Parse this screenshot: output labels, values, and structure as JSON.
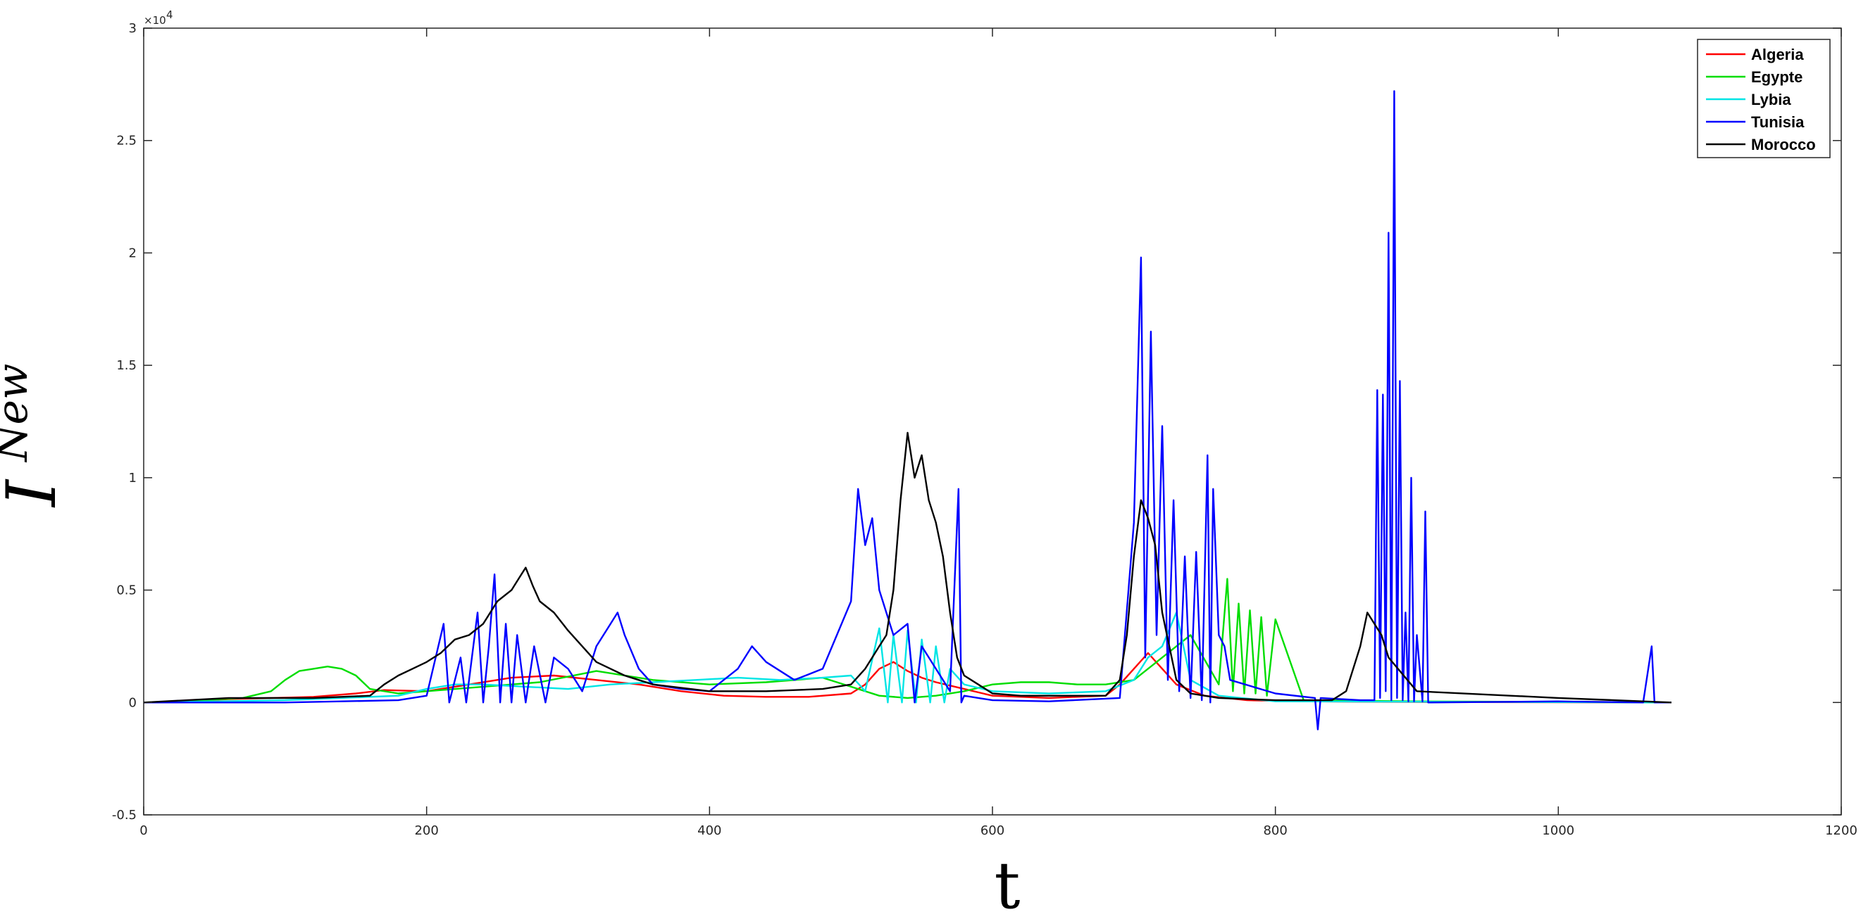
{
  "chart_data": {
    "type": "line",
    "xlabel": "t",
    "ylabel": "I",
    "ylabel_superscript": "New",
    "y_exponent_label": "×10",
    "y_exponent_power": "4",
    "xlim": [
      0,
      1200
    ],
    "ylim": [
      -5000,
      30000
    ],
    "xticks": [
      0,
      200,
      400,
      600,
      800,
      1000,
      1200
    ],
    "xtick_labels": [
      "0",
      "200",
      "400",
      "600",
      "800",
      "1000",
      "1200"
    ],
    "yticks": [
      -5000,
      0,
      5000,
      10000,
      15000,
      20000,
      25000,
      30000
    ],
    "ytick_labels": [
      "-0.5",
      "0",
      "0.5",
      "1",
      "1.5",
      "2",
      "2.5",
      "3"
    ],
    "grid": false,
    "legend_position": "top-right",
    "series": [
      {
        "name": "Algeria",
        "color": "#ff0000",
        "x": [
          0,
          30,
          60,
          90,
          120,
          150,
          170,
          200,
          230,
          260,
          290,
          320,
          350,
          380,
          410,
          440,
          470,
          500,
          510,
          520,
          530,
          540,
          550,
          560,
          580,
          600,
          640,
          680,
          690,
          700,
          710,
          720,
          730,
          750,
          780,
          820,
          900,
          1000,
          1080
        ],
        "values": [
          0,
          50,
          150,
          200,
          250,
          400,
          550,
          500,
          800,
          1100,
          1200,
          1000,
          800,
          500,
          300,
          250,
          250,
          400,
          800,
          1500,
          1800,
          1400,
          1100,
          900,
          600,
          300,
          200,
          300,
          800,
          1500,
          2200,
          1500,
          800,
          300,
          100,
          50,
          20,
          10,
          0
        ]
      },
      {
        "name": "Egypte",
        "color": "#00dd00",
        "x": [
          0,
          40,
          70,
          90,
          100,
          110,
          120,
          130,
          140,
          150,
          160,
          180,
          200,
          240,
          280,
          320,
          360,
          400,
          440,
          480,
          500,
          520,
          540,
          560,
          580,
          600,
          620,
          640,
          660,
          680,
          700,
          720,
          740,
          760,
          766,
          770,
          774,
          778,
          782,
          786,
          790,
          794,
          800,
          820,
          900,
          1080
        ],
        "values": [
          0,
          100,
          200,
          500,
          1000,
          1400,
          1500,
          1600,
          1500,
          1200,
          600,
          400,
          500,
          700,
          900,
          1400,
          1000,
          800,
          900,
          1100,
          700,
          300,
          200,
          300,
          500,
          800,
          900,
          900,
          800,
          800,
          1000,
          2000,
          3000,
          800,
          5500,
          500,
          4400,
          400,
          4100,
          400,
          3800,
          300,
          3700,
          100,
          50,
          0
        ]
      },
      {
        "name": "Lybia",
        "color": "#00e5e5",
        "x": [
          0,
          100,
          180,
          200,
          220,
          240,
          270,
          300,
          330,
          360,
          390,
          420,
          450,
          480,
          500,
          510,
          520,
          526,
          530,
          536,
          540,
          546,
          550,
          556,
          560,
          566,
          570,
          580,
          600,
          640,
          680,
          700,
          710,
          720,
          730,
          740,
          760,
          800,
          1080
        ],
        "values": [
          0,
          100,
          300,
          600,
          800,
          800,
          700,
          600,
          800,
          900,
          1000,
          1100,
          1000,
          1100,
          1200,
          500,
          3300,
          0,
          3000,
          0,
          3200,
          0,
          2800,
          0,
          2500,
          0,
          1500,
          800,
          500,
          400,
          500,
          1000,
          2000,
          2500,
          4000,
          1000,
          300,
          50,
          0
        ]
      },
      {
        "name": "Tunisia",
        "color": "#0000ff",
        "x": [
          0,
          100,
          180,
          200,
          212,
          216,
          224,
          228,
          236,
          240,
          244,
          248,
          252,
          256,
          260,
          264,
          270,
          276,
          284,
          290,
          300,
          310,
          320,
          330,
          335,
          340,
          350,
          360,
          380,
          400,
          420,
          430,
          440,
          460,
          480,
          500,
          505,
          510,
          515,
          520,
          530,
          540,
          545,
          550,
          560,
          570,
          576,
          578,
          580,
          590,
          600,
          640,
          690,
          700,
          705,
          708,
          712,
          716,
          720,
          724,
          728,
          732,
          736,
          740,
          744,
          748,
          752,
          754,
          756,
          760,
          764,
          768,
          800,
          828,
          830,
          832,
          860,
          870,
          872,
          874,
          876,
          878,
          880,
          882,
          884,
          886,
          888,
          890,
          892,
          894,
          896,
          898,
          900,
          904,
          906,
          908,
          1000,
          1060,
          1066,
          1068,
          1070,
          1080
        ],
        "values": [
          0,
          0,
          100,
          300,
          3500,
          0,
          2000,
          0,
          4000,
          0,
          2500,
          5700,
          0,
          3500,
          0,
          3000,
          0,
          2500,
          0,
          2000,
          1500,
          500,
          2500,
          3500,
          4000,
          3000,
          1500,
          800,
          600,
          500,
          1500,
          2500,
          1800,
          1000,
          1500,
          4500,
          9500,
          7000,
          8200,
          5000,
          3000,
          3500,
          0,
          2500,
          1500,
          500,
          9500,
          0,
          300,
          200,
          100,
          50,
          200,
          8000,
          19800,
          2000,
          16500,
          3000,
          12300,
          1000,
          9000,
          500,
          6500,
          200,
          6700,
          100,
          11000,
          0,
          9500,
          3000,
          2500,
          1000,
          400,
          200,
          -1200,
          200,
          100,
          100,
          13900,
          200,
          13700,
          500,
          20900,
          100,
          27200,
          200,
          14300,
          100,
          4000,
          50,
          10000,
          50,
          3000,
          50,
          8500,
          0,
          50,
          0,
          2500,
          0,
          0,
          0
        ]
      },
      {
        "name": "Morocco",
        "color": "#000000",
        "x": [
          0,
          60,
          120,
          160,
          170,
          180,
          190,
          200,
          210,
          220,
          230,
          240,
          250,
          260,
          265,
          270,
          275,
          280,
          290,
          300,
          310,
          320,
          330,
          340,
          360,
          400,
          440,
          480,
          500,
          510,
          520,
          525,
          530,
          535,
          540,
          545,
          550,
          555,
          560,
          565,
          570,
          575,
          580,
          590,
          600,
          620,
          660,
          680,
          690,
          695,
          700,
          705,
          710,
          715,
          720,
          730,
          740,
          760,
          800,
          840,
          850,
          860,
          865,
          870,
          875,
          880,
          900,
          1000,
          1080
        ],
        "values": [
          0,
          200,
          200,
          300,
          800,
          1200,
          1500,
          1800,
          2200,
          2800,
          3000,
          3500,
          4500,
          5000,
          5500,
          6000,
          5200,
          4500,
          4000,
          3200,
          2500,
          1800,
          1500,
          1200,
          800,
          500,
          500,
          600,
          800,
          1500,
          2500,
          3000,
          5000,
          9000,
          12000,
          10000,
          11000,
          9000,
          8000,
          6500,
          4000,
          2000,
          1200,
          800,
          400,
          300,
          300,
          300,
          1000,
          3000,
          6500,
          9000,
          8200,
          7000,
          4000,
          1000,
          400,
          200,
          100,
          100,
          500,
          2500,
          4000,
          3500,
          3000,
          2000,
          500,
          200,
          0
        ]
      }
    ]
  }
}
